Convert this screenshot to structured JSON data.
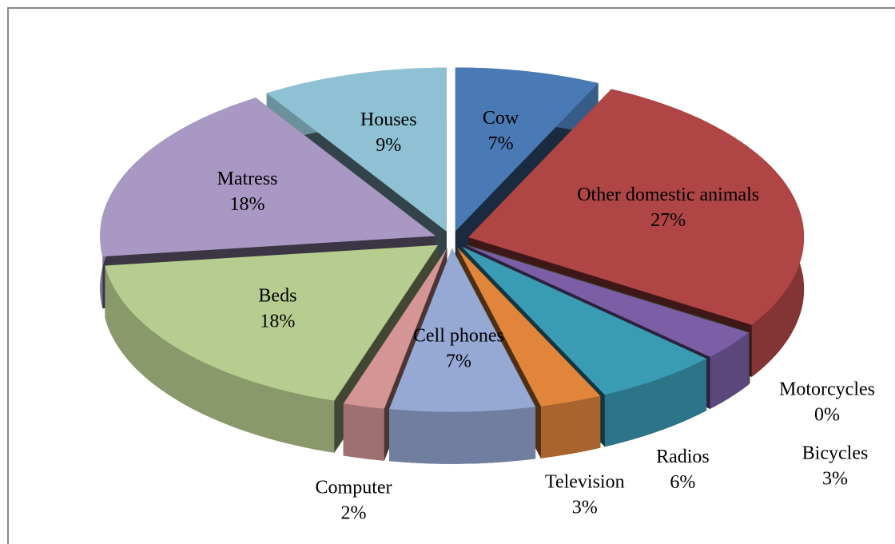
{
  "chart_data": {
    "type": "pie",
    "three_d": true,
    "exploded": true,
    "categories": [
      "Cow",
      "Other domestic animals",
      "Motorcycles",
      "Bicycles",
      "Radios",
      "Television",
      "Cell phones",
      "Computer",
      "Beds",
      "Matress",
      "Houses"
    ],
    "values": [
      7,
      27,
      0,
      3,
      6,
      3,
      7,
      2,
      18,
      18,
      9
    ],
    "value_labels": [
      "7%",
      "27%",
      "0%",
      "3%",
      "6%",
      "3%",
      "7%",
      "2%",
      "18%",
      "18%",
      "9%"
    ],
    "colors": [
      "#4a7ab5",
      "#b04545",
      "#8fa650",
      "#7b5ea6",
      "#3a9bb5",
      "#e0853a",
      "#95a9d4",
      "#d49595",
      "#b7cc8f",
      "#a898c3",
      "#8fc1d4"
    ]
  }
}
